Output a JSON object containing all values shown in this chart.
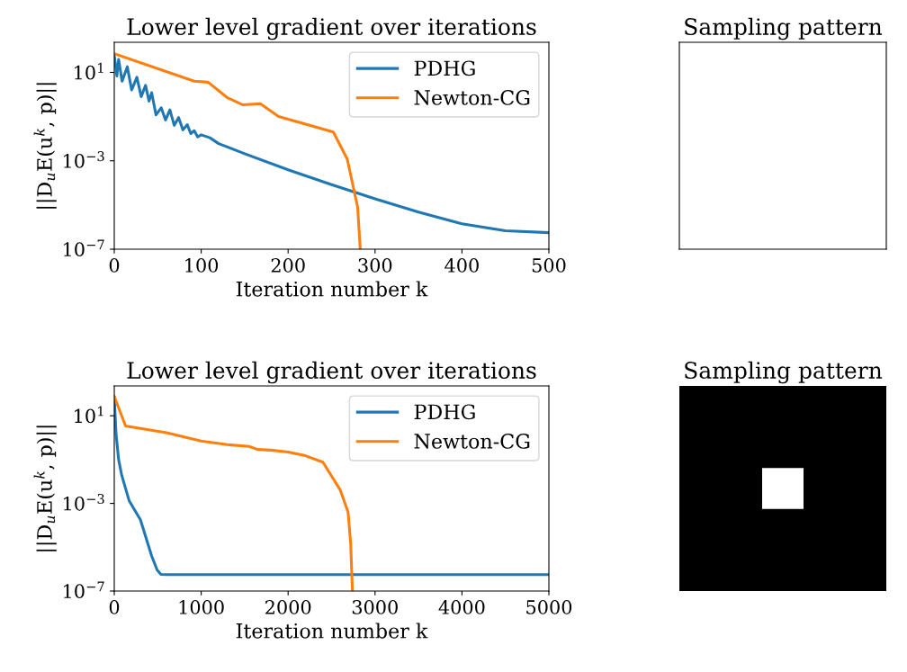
{
  "chart_data": [
    {
      "type": "line",
      "title": "Lower level gradient over iterations",
      "xlabel": "Iteration number k",
      "ylabel": "||D$_{u}$E(u$^{k}$, p)||",
      "log": "y",
      "xlim": [
        0,
        500
      ],
      "xticks": [
        0,
        100,
        200,
        300,
        400,
        500
      ],
      "ylim": [
        1e-07,
        230
      ],
      "yticks": [
        {
          "value": 1e-07,
          "label": "10$^{−7}$"
        },
        {
          "value": 0.001,
          "label": "10$^{−3}$"
        },
        {
          "value": 10,
          "label": "10$^{1}$"
        }
      ],
      "legend": "top right",
      "grid": false,
      "series": [
        {
          "name": "PDHG",
          "color": "#1f77b4",
          "x": [
            0,
            3,
            5,
            9,
            15,
            20,
            26,
            31,
            36,
            40,
            43,
            48,
            54,
            59,
            64,
            69,
            74,
            79,
            84,
            88,
            92,
            96,
            100,
            110,
            120,
            150,
            200,
            250,
            300,
            350,
            400,
            450,
            500
          ],
          "values": [
            58,
            6.8,
            39,
            4,
            18,
            1.6,
            6,
            0.8,
            2.6,
            0.5,
            1.2,
            0.12,
            0.25,
            0.07,
            0.2,
            0.04,
            0.09,
            0.025,
            0.043,
            0.017,
            0.023,
            0.012,
            0.015,
            0.011,
            0.006,
            0.0021,
            0.00039,
            8.3e-05,
            1.9e-05,
            4.8e-06,
            1.4e-06,
            6.8e-07,
            5.6e-07
          ]
        },
        {
          "name": "Newton-CG",
          "color": "#ff7f0e",
          "x": [
            0,
            92,
            108,
            130,
            148,
            168,
            189,
            252,
            268,
            280,
            283
          ],
          "values": [
            70,
            4,
            3.6,
            0.72,
            0.34,
            0.38,
            0.1,
            0.02,
            0.0012,
            8e-06,
            1e-07
          ]
        }
      ]
    },
    {
      "type": "other",
      "title": "Sampling pattern"
    },
    {
      "type": "line",
      "title": "Lower level gradient over iterations",
      "xlabel": "Iteration number k",
      "ylabel": "||D$_{u}$E(u$^{k}$, p)||",
      "log": "y",
      "xlim": [
        0,
        5000
      ],
      "xticks": [
        0,
        1000,
        2000,
        3000,
        4000,
        5000
      ],
      "ylim": [
        1e-07,
        230
      ],
      "yticks": [
        {
          "value": 1e-07,
          "label": "10$^{−7}$"
        },
        {
          "value": 0.001,
          "label": "10$^{−3}$"
        },
        {
          "value": 10,
          "label": "10$^{1}$"
        }
      ],
      "legend": "top right",
      "grid": false,
      "series": [
        {
          "name": "PDHG",
          "color": "#1f77b4",
          "x": [
            0,
            10,
            21,
            50,
            86,
            172,
            301,
            430,
            494,
            537,
            600,
            1000,
            2000,
            3000,
            4000,
            5000
          ],
          "values": [
            70,
            10,
            1.4,
            0.1,
            0.019,
            0.0013,
            0.00018,
            4e-06,
            9e-07,
            5.8e-07,
            5.6e-07,
            5.6e-07,
            5.6e-07,
            5.6e-07,
            5.6e-07,
            5.6e-07
          ]
        },
        {
          "name": "Newton-CG",
          "color": "#ff7f0e",
          "x": [
            0,
            130,
            600,
            1000,
            1300,
            1550,
            1650,
            1800,
            2000,
            2200,
            2400,
            2600,
            2690,
            2720,
            2740
          ],
          "values": [
            76,
            3.4,
            1.7,
            0.7,
            0.48,
            0.4,
            0.29,
            0.27,
            0.22,
            0.15,
            0.076,
            0.0041,
            0.0004,
            1.4e-05,
            1e-07
          ]
        }
      ]
    },
    {
      "type": "other",
      "title": "Sampling pattern"
    }
  ]
}
